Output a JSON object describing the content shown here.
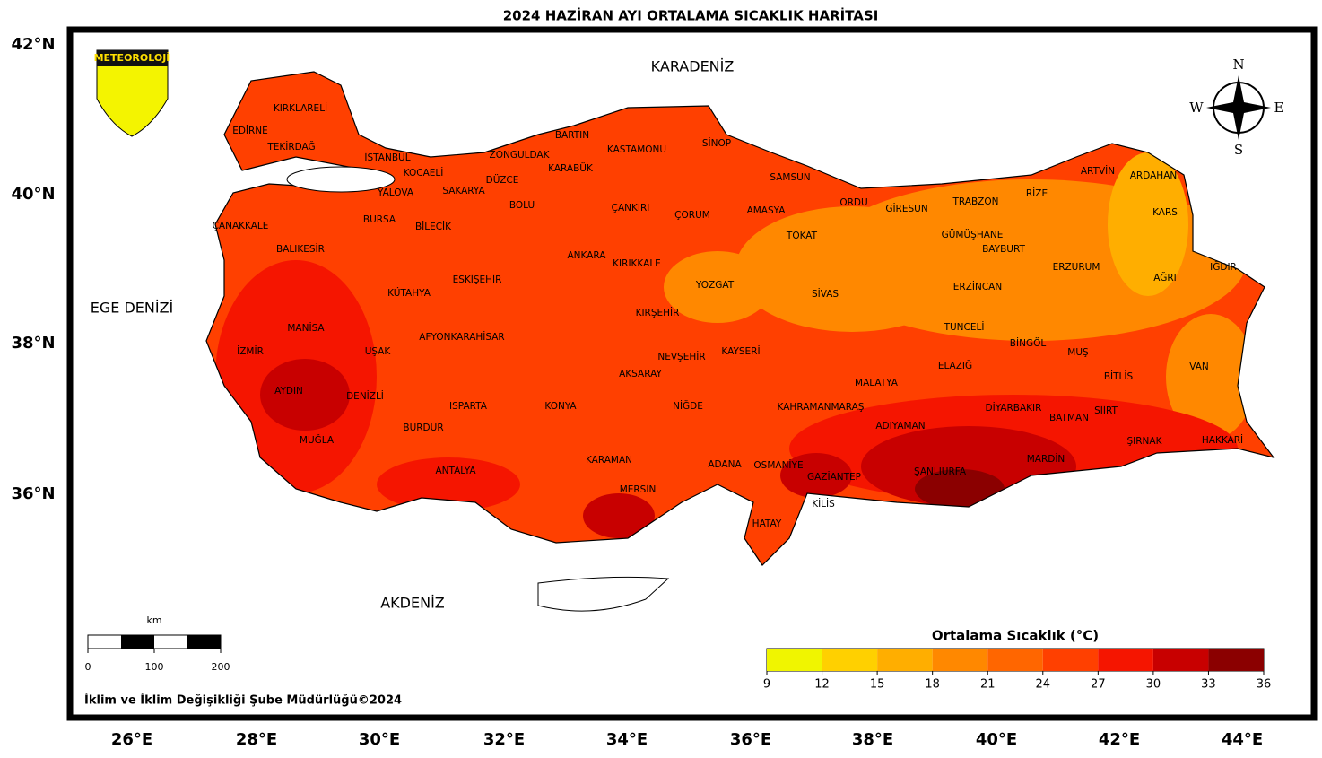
{
  "title": "2024 HAZİRAN AYI ORTALAMA SICAKLIK HARİTASI",
  "lat_labels": [
    "42°N",
    "40°N",
    "38°N",
    "36°N"
  ],
  "lon_labels": [
    "26°E",
    "28°E",
    "30°E",
    "32°E",
    "34°E",
    "36°E",
    "38°E",
    "40°E",
    "42°E",
    "44°E"
  ],
  "seas": [
    "KARADENİZ",
    "EGE DENİZİ",
    "AKDENİZ"
  ],
  "logo": "METEOROLOJİ",
  "compass": [
    "N",
    "E",
    "S",
    "W"
  ],
  "provinces": [
    "KIRKLARELİ",
    "EDİRNE",
    "TEKİRDAĞ",
    "İSTANBUL",
    "KOCAELİ",
    "YALOVA",
    "SAKARYA",
    "DÜZCE",
    "ZONGULDAK",
    "BARTIN",
    "KARABÜK",
    "KASTAMONU",
    "SİNOP",
    "SAMSUN",
    "ÇANAKKALE",
    "BURSA",
    "BİLECİK",
    "BOLU",
    "ÇANKIRI",
    "ÇORUM",
    "AMASYA",
    "TOKAT",
    "ORDU",
    "GİRESUN",
    "TRABZON",
    "RİZE",
    "ARTVİN",
    "ARDAHAN",
    "KARS",
    "BALIKESİR",
    "ANKARA",
    "KIRIKKALE",
    "GÜMÜŞHANE",
    "BAYBURT",
    "ERZURUM",
    "IĞDIR",
    "ESKİŞEHİR",
    "KÜTAHYA",
    "YOZGAT",
    "SİVAS",
    "ERZİNCAN",
    "AĞRI",
    "KIRŞEHİR",
    "MANİSA",
    "TUNCELİ",
    "AFYONKARAHİSAR",
    "İZMİR",
    "UŞAK",
    "NEVŞEHİR",
    "KAYSERİ",
    "BİNGÖL",
    "MUŞ",
    "ELAZIĞ",
    "VAN",
    "BİTLİS",
    "AKSARAY",
    "MALATYA",
    "AYDIN",
    "DENİZLİ",
    "ISPARTA",
    "KONYA",
    "NİĞDE",
    "KAHRAMANMARAŞ",
    "DİYARBAKIR",
    "SİİRT",
    "BATMAN",
    "ADIYAMAN",
    "BURDUR",
    "MUĞLA",
    "ŞIRNAK",
    "HAKKARİ",
    "MARDİN",
    "KARAMAN",
    "ADANA",
    "OSMANİYE",
    "ANTALYA",
    "ŞANLIURFA",
    "GAZİANTEP",
    "MERSİN",
    "KİLİS",
    "HATAY"
  ],
  "legend": {
    "title": "Ortalama Sıcaklık (°C)",
    "ticks": [
      9,
      12,
      15,
      18,
      21,
      24,
      27,
      30,
      33,
      36
    ],
    "colors": [
      "#f0f500",
      "#ffd000",
      "#ffae00",
      "#ff8800",
      "#ff6600",
      "#ff4000",
      "#f51500",
      "#c80000",
      "#8b0000"
    ]
  },
  "scale_bar": {
    "unit": "km",
    "ticks": [
      0,
      100,
      200
    ]
  },
  "credit": "İklim ve İklim Değişikliği Şube Müdürlüğü©2024"
}
